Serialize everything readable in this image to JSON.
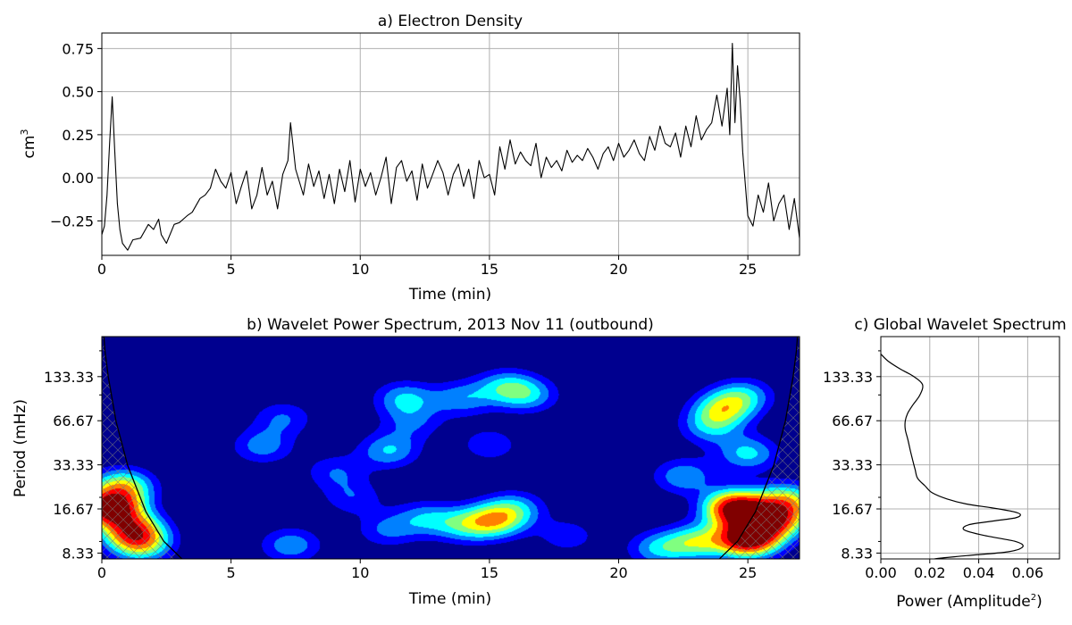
{
  "figure": {
    "colors": {
      "series_line": "#000000",
      "grid": "#b0b0b0",
      "background": "#ffffff"
    }
  },
  "chart_data": [
    {
      "type": "line",
      "title": "a) Electron Density",
      "xlabel": "Time (min)",
      "ylabel": "cm",
      "ylabel_superscript": "3",
      "xlim": [
        0,
        27
      ],
      "ylim": [
        -0.45,
        0.84
      ],
      "xticks": [
        0,
        5,
        10,
        15,
        20,
        25
      ],
      "yticks": [
        -0.25,
        0.0,
        0.25,
        0.5,
        0.75
      ],
      "ytick_labels": [
        "−0.25",
        "0.00",
        "0.25",
        "0.50",
        "0.75"
      ],
      "grid": true,
      "series": [
        {
          "x": [
            0.0,
            0.1,
            0.2,
            0.3,
            0.4,
            0.5,
            0.6,
            0.7,
            0.8,
            1.0,
            1.2,
            1.5,
            1.8,
            2.0,
            2.2,
            2.3,
            2.5,
            2.8,
            3.0,
            3.3,
            3.5,
            3.8,
            4.0,
            4.2,
            4.4,
            4.6,
            4.8,
            5.0,
            5.2,
            5.4,
            5.6,
            5.8,
            6.0,
            6.2,
            6.4,
            6.6,
            6.8,
            7.0,
            7.2,
            7.3,
            7.5,
            7.8,
            8.0,
            8.2,
            8.4,
            8.6,
            8.8,
            9.0,
            9.2,
            9.4,
            9.6,
            9.8,
            10.0,
            10.2,
            10.4,
            10.6,
            10.8,
            11.0,
            11.2,
            11.4,
            11.6,
            11.8,
            12.0,
            12.2,
            12.4,
            12.6,
            12.8,
            13.0,
            13.2,
            13.4,
            13.6,
            13.8,
            14.0,
            14.2,
            14.4,
            14.6,
            14.8,
            15.0,
            15.2,
            15.4,
            15.6,
            15.8,
            16.0,
            16.2,
            16.4,
            16.6,
            16.8,
            17.0,
            17.2,
            17.4,
            17.6,
            17.8,
            18.0,
            18.2,
            18.4,
            18.6,
            18.8,
            19.0,
            19.2,
            19.4,
            19.6,
            19.8,
            20.0,
            20.2,
            20.4,
            20.6,
            20.8,
            21.0,
            21.2,
            21.4,
            21.6,
            21.8,
            22.0,
            22.2,
            22.4,
            22.6,
            22.8,
            23.0,
            23.2,
            23.4,
            23.6,
            23.8,
            24.0,
            24.2,
            24.3,
            24.4,
            24.5,
            24.6,
            24.7,
            24.8,
            25.0,
            25.2,
            25.4,
            25.6,
            25.8,
            26.0,
            26.2,
            26.4,
            26.6,
            26.8,
            27.0
          ],
          "y": [
            -0.33,
            -0.28,
            -0.1,
            0.2,
            0.47,
            0.15,
            -0.15,
            -0.3,
            -0.38,
            -0.42,
            -0.36,
            -0.35,
            -0.27,
            -0.3,
            -0.24,
            -0.33,
            -0.38,
            -0.27,
            -0.26,
            -0.22,
            -0.2,
            -0.12,
            -0.1,
            -0.06,
            0.05,
            -0.02,
            -0.06,
            0.03,
            -0.15,
            -0.05,
            0.04,
            -0.18,
            -0.1,
            0.06,
            -0.1,
            -0.02,
            -0.18,
            0.02,
            0.1,
            0.32,
            0.05,
            -0.1,
            0.08,
            -0.05,
            0.04,
            -0.12,
            0.02,
            -0.15,
            0.05,
            -0.08,
            0.1,
            -0.14,
            0.05,
            -0.05,
            0.03,
            -0.1,
            0.0,
            0.12,
            -0.15,
            0.06,
            0.1,
            -0.02,
            0.04,
            -0.13,
            0.08,
            -0.06,
            0.02,
            0.1,
            0.03,
            -0.1,
            0.02,
            0.08,
            -0.05,
            0.05,
            -0.12,
            0.1,
            0.0,
            0.02,
            -0.1,
            0.18,
            0.05,
            0.22,
            0.08,
            0.15,
            0.1,
            0.07,
            0.2,
            0.0,
            0.12,
            0.06,
            0.1,
            0.04,
            0.16,
            0.09,
            0.13,
            0.1,
            0.17,
            0.12,
            0.05,
            0.14,
            0.18,
            0.1,
            0.2,
            0.12,
            0.16,
            0.22,
            0.14,
            0.1,
            0.24,
            0.16,
            0.3,
            0.2,
            0.18,
            0.26,
            0.12,
            0.3,
            0.18,
            0.36,
            0.22,
            0.28,
            0.32,
            0.48,
            0.3,
            0.52,
            0.25,
            0.78,
            0.32,
            0.65,
            0.45,
            0.15,
            -0.22,
            -0.28,
            -0.1,
            -0.2,
            -0.03,
            -0.25,
            -0.15,
            -0.1,
            -0.3,
            -0.12,
            -0.35
          ]
        }
      ]
    },
    {
      "type": "heatmap",
      "title": "b) Wavelet Power Spectrum, 2013 Nov 11 (outbound)",
      "xlabel": "Time (min)",
      "ylabel": "Period (mHz)",
      "xlim": [
        0,
        27
      ],
      "xticks": [
        0,
        5,
        10,
        15,
        20,
        25
      ],
      "ytick_labels": [
        "133.33",
        "66.67",
        "33.33",
        "16.67",
        "8.33"
      ],
      "scale": "log",
      "colormap": [
        "#00008f",
        "#0000ff",
        "#0080ff",
        "#00ffff",
        "#80ff80",
        "#ffff00",
        "#ff8000",
        "#ff0000",
        "#800000"
      ],
      "cone_of_influence": true,
      "blobs": [
        {
          "t": 0.3,
          "p": 17.0,
          "amp": 7.5
        },
        {
          "t": 1.2,
          "p": 12.0,
          "amp": 5.0
        },
        {
          "t": 0.8,
          "p": 24.0,
          "amp": 4.0
        },
        {
          "t": 1.5,
          "p": 9.5,
          "amp": 3.5
        },
        {
          "t": 25.0,
          "p": 10.5,
          "amp": 8.0
        },
        {
          "t": 24.5,
          "p": 17.0,
          "amp": 7.5
        },
        {
          "t": 26.0,
          "p": 14.0,
          "amp": 5.5
        },
        {
          "t": 23.0,
          "p": 10.0,
          "amp": 3.5
        },
        {
          "t": 21.5,
          "p": 9.0,
          "amp": 2.5
        },
        {
          "t": 26.5,
          "p": 19.0,
          "amp": 4.0
        },
        {
          "t": 25.0,
          "p": 40.0,
          "amp": 2.8
        },
        {
          "t": 24.0,
          "p": 80.0,
          "amp": 3.5
        },
        {
          "t": 24.8,
          "p": 100.0,
          "amp": 2.5
        },
        {
          "t": 22.5,
          "p": 28.0,
          "amp": 2.5
        },
        {
          "t": 23.5,
          "p": 60.0,
          "amp": 2.2
        },
        {
          "t": 15.2,
          "p": 14.0,
          "amp": 3.8
        },
        {
          "t": 14.0,
          "p": 13.0,
          "amp": 2.5
        },
        {
          "t": 12.5,
          "p": 14.5,
          "amp": 2.2
        },
        {
          "t": 16.0,
          "p": 17.0,
          "amp": 2.2
        },
        {
          "t": 7.3,
          "p": 9.5,
          "amp": 2.4
        },
        {
          "t": 11.0,
          "p": 12.0,
          "amp": 1.8
        },
        {
          "t": 6.2,
          "p": 45.0,
          "amp": 2.2
        },
        {
          "t": 11.1,
          "p": 42.0,
          "amp": 2.6
        },
        {
          "t": 11.7,
          "p": 95.0,
          "amp": 2.6
        },
        {
          "t": 13.9,
          "p": 95.0,
          "amp": 2.2
        },
        {
          "t": 15.6,
          "p": 115.0,
          "amp": 2.5
        },
        {
          "t": 16.5,
          "p": 100.0,
          "amp": 2.3
        },
        {
          "t": 7.0,
          "p": 70.0,
          "amp": 1.8
        },
        {
          "t": 15.0,
          "p": 46.0,
          "amp": 1.6
        },
        {
          "t": 9.0,
          "p": 30.0,
          "amp": 1.7
        },
        {
          "t": 9.7,
          "p": 20.0,
          "amp": 1.6
        },
        {
          "t": 12.0,
          "p": 65.0,
          "amp": 1.6
        },
        {
          "t": 18.0,
          "p": 11.0,
          "amp": 1.5
        }
      ]
    },
    {
      "type": "line",
      "title": "c) Global Wavelet Spectrum",
      "xlabel": "Power (Amplitude",
      "xlabel_superscript": "2",
      "xlabel_suffix": ")",
      "xlim": [
        0.0,
        0.073
      ],
      "xticks": [
        0.0,
        0.02,
        0.04,
        0.06
      ],
      "xtick_labels": [
        "0.00",
        "0.02",
        "0.04",
        "0.06"
      ],
      "ytick_labels": [
        "133.33",
        "66.67",
        "33.33",
        "16.67",
        "8.33"
      ],
      "grid": true,
      "series": [
        {
          "frequency_mHz": [
            7.2,
            7.6,
            8.0,
            8.5,
            9.2,
            10.0,
            11.0,
            12.0,
            13.0,
            13.8,
            14.5,
            15.3,
            16.0,
            17.0,
            18.0,
            19.5,
            21.5,
            24.0,
            27.0,
            31.0,
            36.0,
            42.0,
            50.0,
            58.0,
            66.67,
            75.0,
            85.0,
            100.0,
            118.0,
            135.0,
            150.0,
            170.0,
            190.0
          ],
          "power": [
            0.019,
            0.022,
            0.035,
            0.052,
            0.058,
            0.055,
            0.042,
            0.034,
            0.036,
            0.046,
            0.055,
            0.057,
            0.054,
            0.045,
            0.035,
            0.027,
            0.021,
            0.018,
            0.015,
            0.014,
            0.013,
            0.012,
            0.011,
            0.01,
            0.01,
            0.011,
            0.013,
            0.016,
            0.017,
            0.013,
            0.008,
            0.003,
            0.0
          ]
        }
      ]
    }
  ]
}
